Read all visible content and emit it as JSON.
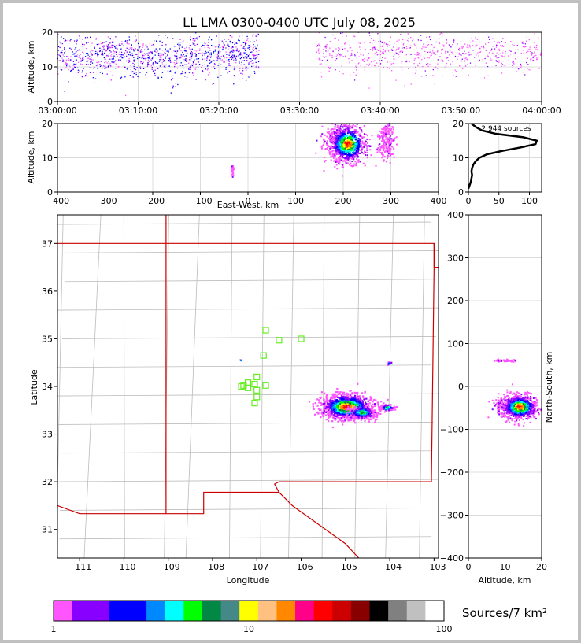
{
  "chart_data": {
    "type": "scatter",
    "title": "LL LMA 0300-0400 UTC July 08, 2025",
    "source_count_label": "2,944 sources",
    "colors": {
      "grid": "#dcdcdc",
      "border": "#cc0000",
      "county": "#bcbcbc",
      "station": "#66ee22"
    },
    "time_height": {
      "ylabel": "Altitude, km",
      "xticks": [
        "03:00:00",
        "03:10:00",
        "03:20:00",
        "03:30:00",
        "03:40:00",
        "03:50:00",
        "04:00:00"
      ],
      "xrange_min": [
        0,
        60
      ],
      "yticks": [
        0,
        10,
        20
      ],
      "ylim": [
        0,
        20
      ]
    },
    "ew_height": {
      "xlabel": "East-West, km",
      "ylabel": "Altitude, km",
      "xticks": [
        -400,
        -300,
        -200,
        -100,
        0,
        100,
        200,
        300,
        400
      ],
      "yticks": [
        0,
        10,
        20
      ],
      "xlim": [
        -400,
        400
      ],
      "ylim": [
        0,
        20
      ]
    },
    "alt_histogram": {
      "xticks": [
        0,
        50,
        100
      ],
      "yticks": [
        0,
        10,
        20
      ],
      "xlim": [
        0,
        120
      ],
      "ylim": [
        0,
        20
      ],
      "profile": [
        [
          0,
          1
        ],
        [
          2,
          2
        ],
        [
          4,
          3
        ],
        [
          5,
          4
        ],
        [
          6,
          5
        ],
        [
          5,
          6
        ],
        [
          6,
          7
        ],
        [
          8,
          8
        ],
        [
          12,
          9
        ],
        [
          18,
          10
        ],
        [
          30,
          11
        ],
        [
          55,
          12
        ],
        [
          85,
          13
        ],
        [
          110,
          14
        ],
        [
          112,
          15
        ],
        [
          90,
          16
        ],
        [
          45,
          17
        ],
        [
          22,
          18
        ],
        [
          12,
          19
        ],
        [
          5,
          20
        ]
      ]
    },
    "plan_view": {
      "xlabel": "Longitude",
      "ylabel": "Latitude",
      "xticks": [
        -111,
        -110,
        -109,
        -108,
        -107,
        -106,
        -105,
        -104,
        -103
      ],
      "yticks": [
        31,
        32,
        33,
        34,
        35,
        36,
        37
      ],
      "xlim": [
        -111.5,
        -102.9
      ],
      "ylim": [
        30.4,
        37.6
      ],
      "stations": [
        [
          -106.8,
          35.18
        ],
        [
          -106.5,
          34.97
        ],
        [
          -106.0,
          35.0
        ],
        [
          -106.85,
          34.65
        ],
        [
          -107.0,
          34.2
        ],
        [
          -107.2,
          34.08
        ],
        [
          -107.05,
          34.05
        ],
        [
          -106.8,
          34.02
        ],
        [
          -107.35,
          34.0
        ],
        [
          -107.0,
          33.92
        ],
        [
          -107.2,
          33.97
        ],
        [
          -107.0,
          33.78
        ],
        [
          -107.05,
          33.65
        ],
        [
          -107.3,
          34.02
        ]
      ],
      "clusters": [
        {
          "lon": -104.97,
          "lat": 33.57,
          "size": 0.28,
          "n": 1200
        },
        {
          "lon": -104.62,
          "lat": 33.45,
          "size": 0.14,
          "n": 300
        },
        {
          "lon": -104.05,
          "lat": 33.55,
          "size": 0.08,
          "n": 70
        },
        {
          "lon": -104.0,
          "lat": 34.48,
          "size": 0.03,
          "n": 12
        },
        {
          "lon": -107.35,
          "lat": 34.55,
          "size": 0.01,
          "n": 4
        }
      ]
    },
    "ns_altitude": {
      "xlabel": "Altitude, km",
      "ylabel": "North-South, km",
      "xticks": [
        0,
        10,
        20
      ],
      "yticks": [
        -400,
        -300,
        -200,
        -100,
        0,
        100,
        200,
        300,
        400
      ],
      "xlim": [
        0,
        20
      ],
      "ylim": [
        -400,
        400
      ]
    },
    "colorbar": {
      "label": "Sources/7 km²",
      "tick_labels": [
        "1",
        "10",
        "100"
      ],
      "ticks": [
        1,
        10,
        100
      ],
      "colors": [
        "#ff55ff",
        "#8800ff",
        "#8800ff",
        "#0000ff",
        "#0000ff",
        "#0088ff",
        "#00ffff",
        "#00ff00",
        "#008844",
        "#448888",
        "#ffff00",
        "#ffc080",
        "#ff8800",
        "#ff0088",
        "#ff0000",
        "#cc0000",
        "#880000",
        "#000000",
        "#808080",
        "#c0c0c0",
        "#ffffff"
      ]
    }
  }
}
